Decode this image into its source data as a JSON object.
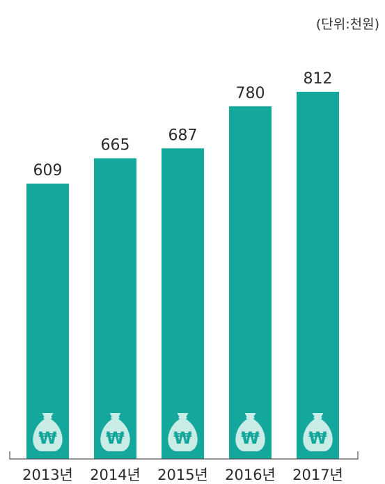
{
  "unit_label": "(단위:천원)",
  "colors": {
    "bar": "#14a89c",
    "icon_bag": "#c9ece6",
    "icon_symbol": "#14a89c",
    "axis": "#555555"
  },
  "icon": "money-bag-won-icon",
  "chart_data": {
    "type": "bar",
    "categories": [
      "2013년",
      "2014년",
      "2015년",
      "2016년",
      "2017년"
    ],
    "values": [
      609,
      665,
      687,
      780,
      812
    ],
    "title": "",
    "xlabel": "",
    "ylabel": "",
    "ylim": [
      0,
      812
    ],
    "grid": false,
    "legend": "none"
  }
}
